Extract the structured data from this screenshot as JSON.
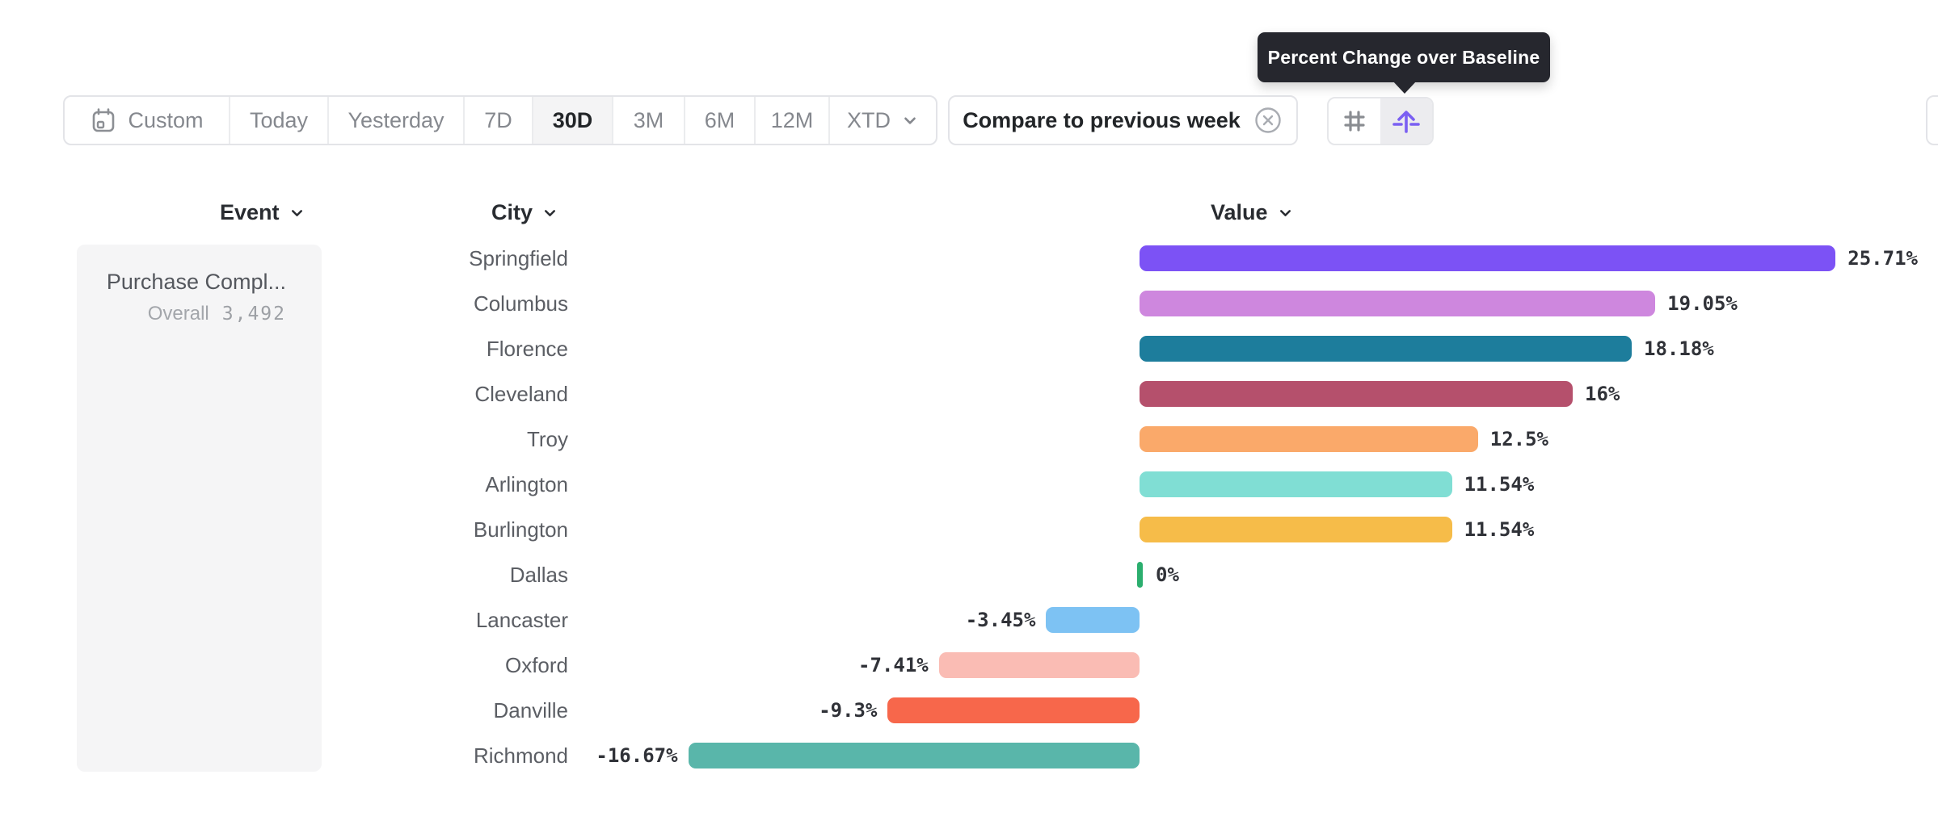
{
  "tooltip": {
    "text": "Percent Change over Baseline"
  },
  "toolbar": {
    "date_ranges": [
      {
        "label": "Custom",
        "icon": "calendar-icon",
        "active": false
      },
      {
        "label": "Today",
        "active": false
      },
      {
        "label": "Yesterday",
        "active": false
      },
      {
        "label": "7D",
        "active": false
      },
      {
        "label": "30D",
        "active": true
      },
      {
        "label": "3M",
        "active": false
      },
      {
        "label": "6M",
        "active": false
      },
      {
        "label": "12M",
        "active": false
      },
      {
        "label": "XTD",
        "icon": "chevron-down-icon",
        "active": false
      }
    ],
    "compare_chip": {
      "label": "Compare to previous week",
      "dismiss_icon": "circle-x-icon"
    },
    "view_toggles": [
      {
        "name": "grid-view",
        "icon": "hash-grid-icon",
        "active": false
      },
      {
        "name": "percent-change-over-baseline",
        "icon": "baseline-arrow-icon",
        "active": true
      }
    ]
  },
  "columns": {
    "event": {
      "label": "Event"
    },
    "city": {
      "label": "City"
    },
    "value": {
      "label": "Value"
    }
  },
  "event_panel": {
    "event_name": "Purchase Compl...",
    "overall_label": "Overall",
    "overall_value": "3,492"
  },
  "chart_data": {
    "type": "bar",
    "orientation": "horizontal",
    "title": "Percent Change over Baseline",
    "unit": "%",
    "baseline": 0,
    "xlim": [
      -16.67,
      25.71
    ],
    "grid": false,
    "categories": [
      "Springfield",
      "Columbus",
      "Florence",
      "Cleveland",
      "Troy",
      "Arlington",
      "Burlington",
      "Dallas",
      "Lancaster",
      "Oxford",
      "Danville",
      "Richmond"
    ],
    "values": [
      25.71,
      19.05,
      18.18,
      16,
      12.5,
      11.54,
      11.54,
      0,
      -3.45,
      -7.41,
      -9.3,
      -16.67
    ],
    "labels": [
      "25.71%",
      "19.05%",
      "18.18%",
      "16%",
      "12.5%",
      "11.54%",
      "11.54%",
      "0%",
      "-3.45%",
      "-7.41%",
      "-9.3%",
      "-16.67%"
    ],
    "colors": [
      "#7C52F5",
      "#CE87DE",
      "#1D7D9C",
      "#B5506C",
      "#FAA96A",
      "#80DED4",
      "#F6BC49",
      "#2BAE6E",
      "#7DC2F3",
      "#FABCB4",
      "#F7674B",
      "#59B6AA"
    ]
  },
  "accent_colors": {
    "active_toggle_icon": "#7A5FF2",
    "tooltip_bg": "#26272E",
    "panel_bg": "#F5F5F6",
    "active_range_bg": "#F4F4F5"
  }
}
